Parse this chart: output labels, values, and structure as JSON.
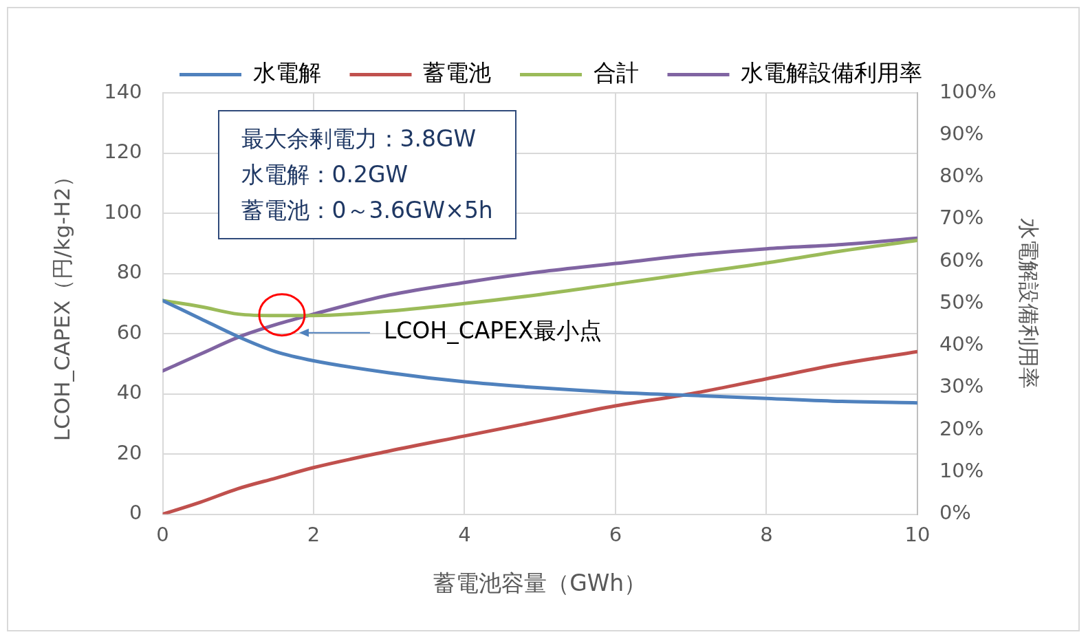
{
  "chart_data": {
    "type": "line",
    "xlabel": "蓄電池容量（GWh）",
    "ylabel": "LCOH_CAPEX（円/kg-H2）",
    "y2label": "水電解設備利用率",
    "x": [
      0,
      0.5,
      1,
      1.5,
      2,
      3,
      4,
      5,
      6,
      7,
      8,
      9,
      10
    ],
    "series": [
      {
        "name": "水電解",
        "color": "#4f81bd",
        "values": [
          71,
          65,
          59,
          54,
          51,
          47,
          44,
          42,
          40.5,
          39.5,
          38.5,
          37.5,
          37
        ]
      },
      {
        "name": "蓄電池",
        "color": "#c0504d",
        "values": [
          0,
          4,
          8.5,
          12,
          15.5,
          21,
          26,
          31,
          36,
          40,
          45,
          50,
          54
        ]
      },
      {
        "name": "合計",
        "color": "#9bbb59",
        "values": [
          71,
          69,
          66.5,
          66,
          66,
          67.5,
          70,
          73,
          76.5,
          80,
          83.5,
          87.5,
          91
        ]
      },
      {
        "name": "水電解設備利用率",
        "color": "#8064a2",
        "axis": "y2",
        "values": [
          34,
          38,
          42,
          45,
          47.5,
          52,
          55,
          57.5,
          59.5,
          61.5,
          63,
          64,
          65.5
        ]
      }
    ],
    "xlim": [
      0,
      10
    ],
    "xticks": [
      0,
      2,
      4,
      6,
      8,
      10
    ],
    "ylim": [
      0,
      140
    ],
    "yticks": [
      0,
      20,
      40,
      60,
      80,
      100,
      120,
      140
    ],
    "y2lim": [
      0,
      100
    ],
    "y2ticks": [
      {
        "value": 0,
        "label": "0%"
      },
      {
        "value": 10,
        "label": "10%"
      },
      {
        "value": 20,
        "label": "20%"
      },
      {
        "value": 30,
        "label": "30%"
      },
      {
        "value": 40,
        "label": "40%"
      },
      {
        "value": 50,
        "label": "50%"
      },
      {
        "value": 60,
        "label": "60%"
      },
      {
        "value": 70,
        "label": "70%"
      },
      {
        "value": 80,
        "label": "80%"
      },
      {
        "value": 90,
        "label": "90%"
      },
      {
        "value": 100,
        "label": "100%"
      }
    ],
    "grid": true,
    "legend": "top",
    "marker": "none",
    "line_style": "solid",
    "annotations": [
      "最大余剰電力：3.8GW",
      "水電解：0.2GW",
      "蓄電池：0～3.6GW×5h",
      "LCOH_CAPEX最小点"
    ]
  }
}
